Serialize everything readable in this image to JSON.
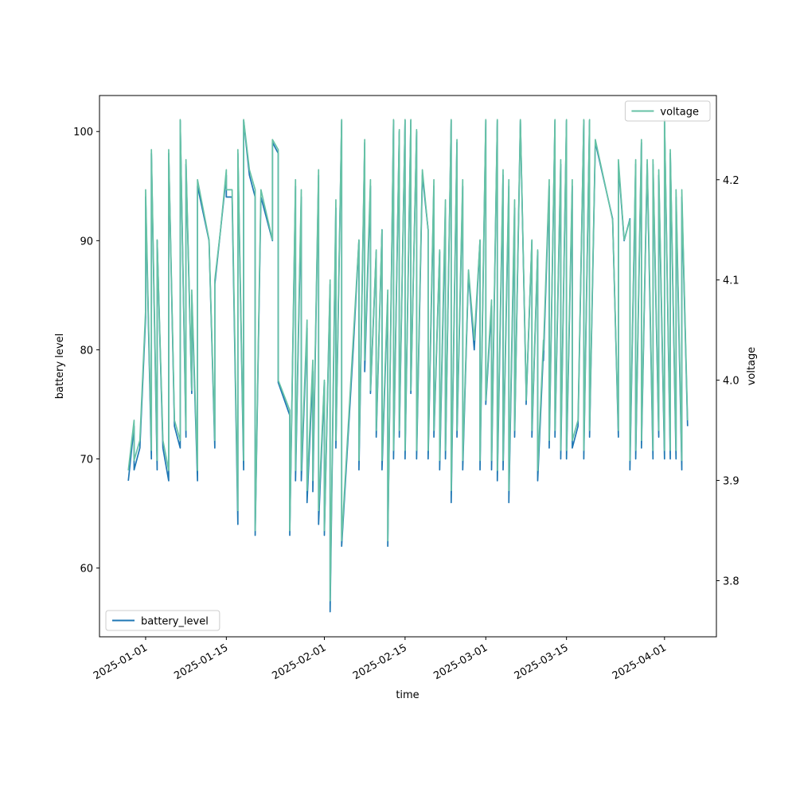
{
  "chart_data": {
    "type": "line",
    "xlabel": "time",
    "ylabel": "battery level",
    "y2label": "voltage",
    "x": [
      "2024-12-29",
      "2024-12-30",
      "2024-12-30",
      "2024-12-31",
      "2025-01-01",
      "2025-01-01",
      "2025-01-02",
      "2025-01-02",
      "2025-01-03",
      "2025-01-03",
      "2025-01-04",
      "2025-01-05",
      "2025-01-05",
      "2025-01-06",
      "2025-01-07",
      "2025-01-07",
      "2025-01-08",
      "2025-01-08",
      "2025-01-09",
      "2025-01-09",
      "2025-01-10",
      "2025-01-10",
      "2025-01-12",
      "2025-01-13",
      "2025-01-13",
      "2025-01-14",
      "2025-01-15",
      "2025-01-15",
      "2025-01-16",
      "2025-01-17",
      "2025-01-17",
      "2025-01-18",
      "2025-01-18",
      "2025-01-19",
      "2025-01-20",
      "2025-01-20",
      "2025-01-21",
      "2025-01-23",
      "2025-01-23",
      "2025-01-24",
      "2025-01-24",
      "2025-01-26",
      "2025-01-26",
      "2025-01-27",
      "2025-01-27",
      "2025-01-28",
      "2025-01-28",
      "2025-01-29",
      "2025-01-29",
      "2025-01-30",
      "2025-01-30",
      "2025-01-31",
      "2025-01-31",
      "2025-02-01",
      "2025-02-01",
      "2025-02-02",
      "2025-02-02",
      "2025-02-03",
      "2025-02-03",
      "2025-02-04",
      "2025-02-04",
      "2025-02-06",
      "2025-02-07",
      "2025-02-07",
      "2025-02-08",
      "2025-02-08",
      "2025-02-09",
      "2025-02-09",
      "2025-02-10",
      "2025-02-10",
      "2025-02-11",
      "2025-02-11",
      "2025-02-12",
      "2025-02-12",
      "2025-02-13",
      "2025-02-13",
      "2025-02-14",
      "2025-02-14",
      "2025-02-15",
      "2025-02-15",
      "2025-02-16",
      "2025-02-16",
      "2025-02-17",
      "2025-02-17",
      "2025-02-18",
      "2025-02-19",
      "2025-02-19",
      "2025-02-20",
      "2025-02-20",
      "2025-02-21",
      "2025-02-21",
      "2025-02-22",
      "2025-02-22",
      "2025-02-23",
      "2025-02-23",
      "2025-02-24",
      "2025-02-24",
      "2025-02-25",
      "2025-02-25",
      "2025-02-26",
      "2025-02-27",
      "2025-02-28",
      "2025-02-28",
      "2025-03-01",
      "2025-03-01",
      "2025-03-02",
      "2025-03-02",
      "2025-03-03",
      "2025-03-03",
      "2025-03-04",
      "2025-03-04",
      "2025-03-05",
      "2025-03-05",
      "2025-03-06",
      "2025-03-06",
      "2025-03-07",
      "2025-03-08",
      "2025-03-08",
      "2025-03-09",
      "2025-03-09",
      "2025-03-10",
      "2025-03-10",
      "2025-03-11",
      "2025-03-11",
      "2025-03-12",
      "2025-03-12",
      "2025-03-13",
      "2025-03-13",
      "2025-03-14",
      "2025-03-14",
      "2025-03-15",
      "2025-03-15",
      "2025-03-16",
      "2025-03-16",
      "2025-03-17",
      "2025-03-18",
      "2025-03-18",
      "2025-03-19",
      "2025-03-19",
      "2025-03-20",
      "2025-03-23",
      "2025-03-24",
      "2025-03-24",
      "2025-03-25",
      "2025-03-26",
      "2025-03-26",
      "2025-03-27",
      "2025-03-27",
      "2025-03-28",
      "2025-03-28",
      "2025-03-29",
      "2025-03-30",
      "2025-03-30",
      "2025-03-31",
      "2025-03-31",
      "2025-04-01",
      "2025-04-01",
      "2025-04-02",
      "2025-04-02",
      "2025-04-03",
      "2025-04-03",
      "2025-04-04",
      "2025-04-04",
      "2025-04-05"
    ],
    "series": [
      {
        "name": "battery_level",
        "color": "#1f77b4",
        "axis": "y",
        "legend_loc": "lower left",
        "values": [
          68,
          73,
          69,
          71,
          83,
          94,
          70,
          98,
          69,
          90,
          71,
          68,
          98,
          73,
          71,
          101,
          72,
          97,
          76,
          85,
          68,
          95,
          90,
          71,
          86,
          91,
          96,
          94,
          94,
          64,
          98,
          69,
          101,
          96,
          94,
          63,
          94,
          90,
          99,
          98,
          77,
          74,
          63,
          95,
          68,
          94,
          68,
          82,
          66,
          78,
          67,
          96,
          64,
          77,
          63,
          86,
          56,
          93,
          71,
          101,
          62,
          80,
          90,
          69,
          99,
          78,
          95,
          76,
          89,
          72,
          91,
          69,
          85,
          62,
          101,
          70,
          100,
          72,
          101,
          70,
          101,
          76,
          100,
          70,
          96,
          91,
          70,
          95,
          72,
          89,
          69,
          93,
          70,
          101,
          66,
          99,
          72,
          95,
          69,
          87,
          80,
          90,
          69,
          101,
          75,
          84,
          69,
          101,
          68,
          96,
          69,
          95,
          66,
          93,
          72,
          101,
          76,
          75,
          90,
          72,
          89,
          68,
          80,
          79,
          95,
          71,
          101,
          72,
          97,
          70,
          101,
          70,
          95,
          71,
          73,
          101,
          70,
          101,
          72,
          99,
          92,
          72,
          97,
          90,
          92,
          69,
          97,
          70,
          99,
          71,
          97,
          70,
          97,
          72,
          96,
          70,
          101,
          70,
          98,
          70,
          94,
          69,
          94,
          73
        ]
      },
      {
        "name": "voltage",
        "color": "#66c2a5",
        "axis": "y2",
        "legend_loc": "upper right",
        "values": [
          3.91,
          3.96,
          3.92,
          3.94,
          4.07,
          4.19,
          3.93,
          4.23,
          3.92,
          4.14,
          3.94,
          3.91,
          4.23,
          3.96,
          3.94,
          4.26,
          3.95,
          4.22,
          3.99,
          4.09,
          3.91,
          4.2,
          4.14,
          3.94,
          4.1,
          4.15,
          4.21,
          4.19,
          4.19,
          3.87,
          4.23,
          3.92,
          4.26,
          4.21,
          4.19,
          3.85,
          4.19,
          4.14,
          4.24,
          4.23,
          4.0,
          3.97,
          3.85,
          4.2,
          3.91,
          4.19,
          3.91,
          4.06,
          3.89,
          4.02,
          3.9,
          4.21,
          3.87,
          4.0,
          3.85,
          4.1,
          3.78,
          4.18,
          3.94,
          4.26,
          3.84,
          4.04,
          4.14,
          3.92,
          4.24,
          4.02,
          4.2,
          3.99,
          4.13,
          3.95,
          4.15,
          3.92,
          4.09,
          3.84,
          4.26,
          3.93,
          4.25,
          3.95,
          4.26,
          3.93,
          4.26,
          3.99,
          4.25,
          3.93,
          4.21,
          4.15,
          3.93,
          4.2,
          3.95,
          4.13,
          3.92,
          4.18,
          3.93,
          4.26,
          3.89,
          4.24,
          3.95,
          4.2,
          3.92,
          4.11,
          4.04,
          4.14,
          3.92,
          4.26,
          3.98,
          4.08,
          3.92,
          4.26,
          3.91,
          4.21,
          3.92,
          4.2,
          3.89,
          4.18,
          3.95,
          4.26,
          3.99,
          3.98,
          4.14,
          3.95,
          4.13,
          3.91,
          4.04,
          4.03,
          4.2,
          3.94,
          4.26,
          3.95,
          4.22,
          3.93,
          4.26,
          3.93,
          4.2,
          3.94,
          3.96,
          4.26,
          3.93,
          4.26,
          3.95,
          4.24,
          4.16,
          3.95,
          4.22,
          4.14,
          4.16,
          3.92,
          4.22,
          3.93,
          4.24,
          3.94,
          4.22,
          3.93,
          4.22,
          3.95,
          4.21,
          3.93,
          4.26,
          3.93,
          4.23,
          3.93,
          4.19,
          3.92,
          4.19,
          3.96
        ]
      }
    ],
    "xlim": [
      "2024-12-24",
      "2025-04-10"
    ],
    "xticks": [
      "2025-01-01",
      "2025-01-15",
      "2025-02-01",
      "2025-02-15",
      "2025-03-01",
      "2025-03-15",
      "2025-04-01"
    ],
    "ylim": [
      53.7,
      103.3
    ],
    "yticks": [
      60,
      70,
      80,
      90,
      100
    ],
    "y2lim": [
      3.744,
      4.284
    ],
    "y2ticks": [
      3.8,
      3.9,
      {
        "value": 4,
        "label": "4.0"
      },
      4.1,
      4.2
    ],
    "grid": false
  }
}
